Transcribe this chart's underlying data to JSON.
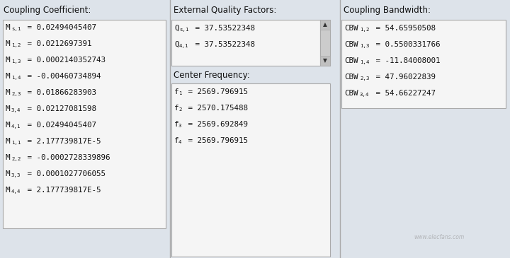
{
  "bg_color": "#dde3ea",
  "box_bg": "#f5f5f5",
  "box_border": "#aaaaaa",
  "text_color": "#111111",
  "divider_color": "#aaaaaa",
  "col1_title": "Coupling Coefficient:",
  "col1_lines": [
    "Ms,1 = 0.02494045407",
    "M1,2 = 0.0212697391",
    "M1,3 = 0.0002140352743",
    "M1,4 = -0.00460734894",
    "M2,3 = 0.01866283903",
    "M3,4 = 0.02127081598",
    "M4,1 = 0.02494045407",
    "M1,1 = 2.177739817E-5",
    "M2,2 = -0.0002728339896",
    "M3,3 = 0.0001027706055",
    "M4,4 = 2.177739817E-5"
  ],
  "col1_subs": [
    [
      "s",
      "1"
    ],
    [
      "1",
      "2"
    ],
    [
      "1",
      "3"
    ],
    [
      "1",
      "4"
    ],
    [
      "2",
      "3"
    ],
    [
      "3",
      "4"
    ],
    [
      "4",
      "1"
    ],
    [
      "1",
      "1"
    ],
    [
      "2",
      "2"
    ],
    [
      "3",
      "3"
    ],
    [
      "4",
      "4"
    ]
  ],
  "col2_title1": "External Quality Factors:",
  "col2_lines1": [
    "Qs,1 = 37.53522348",
    "Q4,1 = 37.53522348"
  ],
  "col2_subs1": [
    [
      "s",
      "1"
    ],
    [
      "4",
      "1"
    ]
  ],
  "col2_title2": "Center Frequency:",
  "col2_lines2": [
    "f1 = 2569.796915",
    "f2 = 2570.175488",
    "f3 = 2569.692849",
    "f4 = 2569.796915"
  ],
  "col2_fsubs2": [
    "1",
    "2",
    "3",
    "4"
  ],
  "col3_title": "Coupling Bandwidth:",
  "col3_lines": [
    "CBW1,2 = 54.65950508",
    "CBW1,3 = 0.5500331766",
    "CBW1,4 = -11.84008001",
    "CBW2,3 = 47.96022839",
    "CBW3,4 = 54.66227247"
  ],
  "col3_subs": [
    [
      "1",
      "2"
    ],
    [
      "1",
      "3"
    ],
    [
      "1",
      "4"
    ],
    [
      "2",
      "3"
    ],
    [
      "3",
      "4"
    ]
  ],
  "font_size": 7.8,
  "title_font_size": 8.5,
  "mono_font": "monospace"
}
